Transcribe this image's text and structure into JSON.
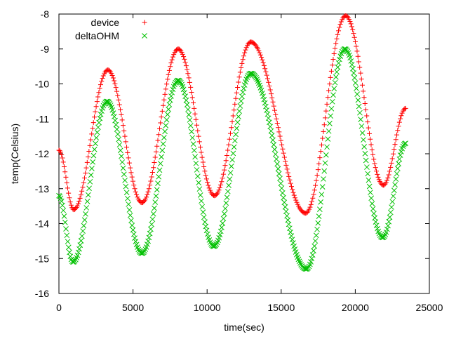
{
  "chart_data": {
    "type": "scatter",
    "title": "",
    "xlabel": "time(sec)",
    "ylabel": "temp(Celsius)",
    "xlim": [
      0,
      25000
    ],
    "ylim": [
      -16,
      -8
    ],
    "xticks": [
      0,
      5000,
      10000,
      15000,
      20000,
      25000
    ],
    "yticks": [
      -16,
      -15,
      -14,
      -13,
      -12,
      -11,
      -10,
      -9,
      -8
    ],
    "grid": false,
    "legend_position": "top-left",
    "series": [
      {
        "name": "device",
        "color": "#ff0000",
        "marker": "plus",
        "extrema": [
          {
            "x": 0,
            "y": -11.9
          },
          {
            "x": 1000,
            "y": -13.6
          },
          {
            "x": 3300,
            "y": -9.6
          },
          {
            "x": 5600,
            "y": -13.4
          },
          {
            "x": 8050,
            "y": -9.0
          },
          {
            "x": 10500,
            "y": -13.2
          },
          {
            "x": 12950,
            "y": -8.8
          },
          {
            "x": 16650,
            "y": -13.7
          },
          {
            "x": 19350,
            "y": -8.05
          },
          {
            "x": 21900,
            "y": -12.9
          },
          {
            "x": 23400,
            "y": -10.7
          }
        ]
      },
      {
        "name": "deltaOHM",
        "color": "#00c000",
        "marker": "cross",
        "extrema": [
          {
            "x": 0,
            "y": -13.2
          },
          {
            "x": 950,
            "y": -15.1
          },
          {
            "x": 3250,
            "y": -10.5
          },
          {
            "x": 5600,
            "y": -14.85
          },
          {
            "x": 8050,
            "y": -9.9
          },
          {
            "x": 10450,
            "y": -14.65
          },
          {
            "x": 12950,
            "y": -9.7
          },
          {
            "x": 16700,
            "y": -15.3
          },
          {
            "x": 19300,
            "y": -9.0
          },
          {
            "x": 21850,
            "y": -14.4
          },
          {
            "x": 23400,
            "y": -11.7
          }
        ]
      }
    ]
  }
}
